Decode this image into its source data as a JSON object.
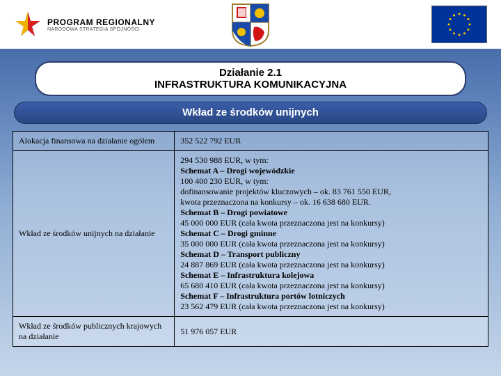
{
  "header": {
    "program_title": "PROGRAM REGIONALNY",
    "program_sub": "NARODOWA STRATEGIA SPÓJNOŚCI",
    "eu_flag_bg": "#003399",
    "eu_star_color": "#ffcc00"
  },
  "title": {
    "line1": "Działanie 2.1",
    "line2": "INFRASTRUKTURA KOMUNIKACYJNA"
  },
  "subtitle": "Wkład ze środków unijnych",
  "rows": [
    {
      "label": "Alokacja finansowa na działanie ogółem",
      "value_lines": [
        {
          "text": "352 522 792 EUR",
          "bold": false
        }
      ]
    },
    {
      "label": "Wkład ze środków unijnych na działanie",
      "value_lines": [
        {
          "text": "294 530 988 EUR, w tym:",
          "bold": false
        },
        {
          "text": "Schemat A – Drogi wojewódzkie",
          "bold": true
        },
        {
          "text": "100 400 230 EUR, w tym:",
          "bold": false
        },
        {
          "text": "dofinansowanie projektów kluczowych – ok. 83 761 550 EUR,",
          "bold": false
        },
        {
          "text": "kwota przeznaczona na konkursy – ok. 16 638 680 EUR.",
          "bold": false
        },
        {
          "text": "Schemat B – Drogi powiatowe",
          "bold": true
        },
        {
          "text": "45 000 000 EUR (cała kwota przeznaczona jest na konkursy)",
          "bold": false
        },
        {
          "text": "Schemat C – Drogi gminne",
          "bold": true
        },
        {
          "text": "35 000 000 EUR (cała kwota przeznaczona jest na konkursy)",
          "bold": false
        },
        {
          "text": "Schemat D – Transport publiczny",
          "bold": true
        },
        {
          "text": "24 887 869 EUR (cała kwota przeznaczona jest na konkursy)",
          "bold": false
        },
        {
          "text": "Schemat E – Infrastruktura kolejowa",
          "bold": true
        },
        {
          "text": "65 680 410 EUR (cała kwota przeznaczona jest na konkursy)",
          "bold": false
        },
        {
          "text": "Schemat F – Infrastruktura portów lotniczych",
          "bold": true
        },
        {
          "text": "23 562 479 EUR (cała kwota przeznaczona jest na konkursy)",
          "bold": false
        }
      ]
    },
    {
      "label": "Wkład ze środków publicznych krajowych na działanie",
      "value_lines": [
        {
          "text": "51 976 057 EUR",
          "bold": false
        }
      ]
    }
  ],
  "colors": {
    "title_border": "#2a3a6a",
    "table_border": "#000000"
  }
}
